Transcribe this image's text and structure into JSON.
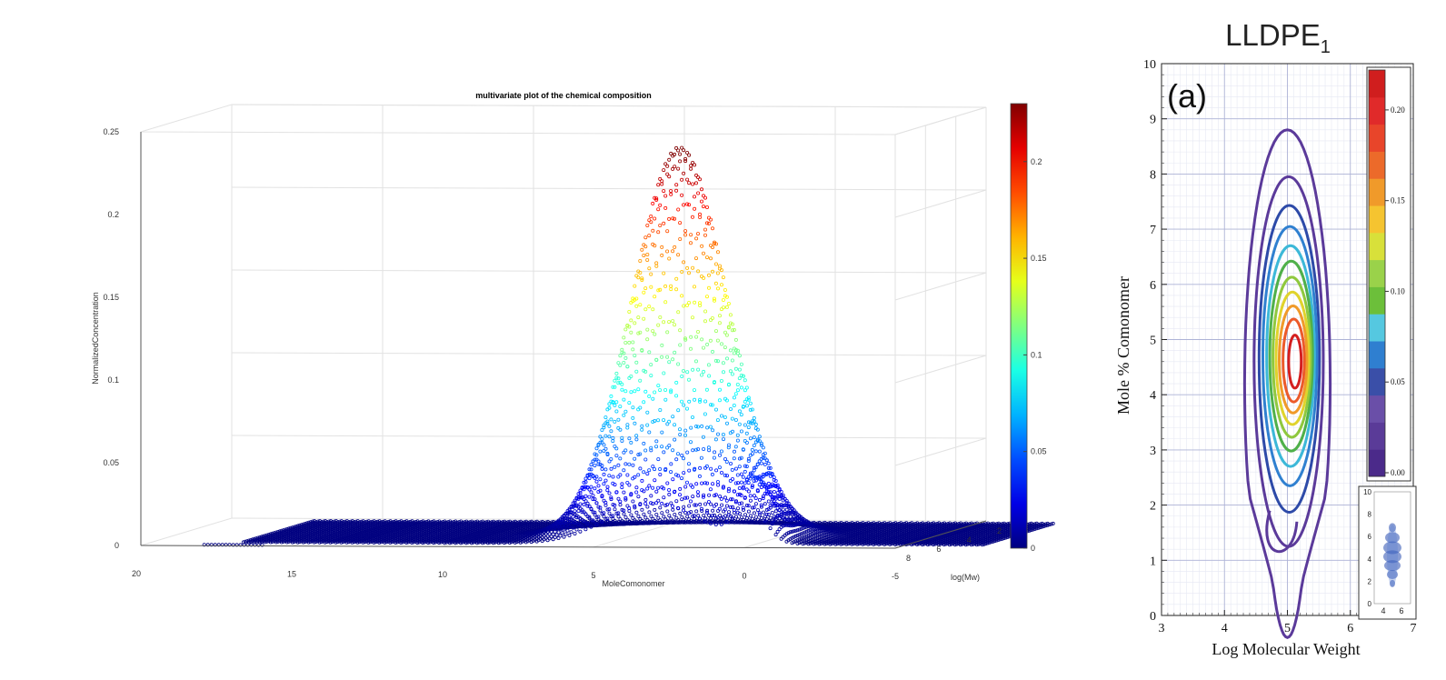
{
  "chart_data": [
    {
      "type": "scatter",
      "title": "multivariate plot of the chemical composition",
      "xlabel": "MoleComonomer",
      "ylabel": "log(Mw)",
      "zlabel": "NormalizedConcentration",
      "x_ticks": [
        "20",
        "15",
        "10",
        "5",
        "0",
        "-5"
      ],
      "y_ticks": [
        "8",
        "6",
        "4",
        "2"
      ],
      "z_ticks": [
        "0",
        "0.05",
        "0.1",
        "0.15",
        "0.2",
        "0.25"
      ],
      "colorbar_ticks": [
        "0",
        "0.05",
        "0.1",
        "0.15",
        "0.2"
      ],
      "colormap": "jet",
      "clim": [
        0,
        0.23
      ],
      "xlim": [
        20,
        -5
      ],
      "ylim": [
        8,
        2
      ],
      "zlim": [
        0,
        0.25
      ],
      "grid": true,
      "peak": {
        "x": 3.5,
        "z": 0.235
      },
      "secondary_peak": {
        "x": 0.2,
        "z": 0.06
      }
    },
    {
      "type": "contour",
      "title": "LLDPE",
      "title_subscript": "1",
      "panel_label": "(a)",
      "xlabel": "Log Molecular Weight",
      "ylabel": "Mole % Comonomer",
      "x_ticks": [
        "3",
        "4",
        "5",
        "6",
        "7"
      ],
      "y_ticks": [
        "0",
        "1",
        "2",
        "3",
        "4",
        "5",
        "6",
        "7",
        "8",
        "9",
        "10"
      ],
      "xlim": [
        3,
        7
      ],
      "ylim": [
        0,
        10
      ],
      "grid": true,
      "colorbar_ticks": [
        "0.00",
        "0.05",
        "0.10",
        "0.15",
        "0.20"
      ],
      "colorbar_colors": [
        "#4b2a8a",
        "#5a3b98",
        "#6a4fa8",
        "#3a4fa8",
        "#2f7fd0",
        "#55c8e0",
        "#6cbf3a",
        "#9ad24a",
        "#d8e03a",
        "#f5c430",
        "#f09a2a",
        "#ec6a2a",
        "#e8452a",
        "#e02a2a",
        "#d01e1e"
      ],
      "levels": [
        {
          "color": "#5b3a9a",
          "cx": 5.0,
          "cy": 4.2,
          "rx": 0.68,
          "ry": 4.6
        },
        {
          "color": "#5b3a9a",
          "cx": 5.02,
          "cy": 4.6,
          "rx": 0.55,
          "ry": 3.35
        },
        {
          "color": "#2d4aa8",
          "cx": 5.03,
          "cy": 4.65,
          "rx": 0.48,
          "ry": 2.78
        },
        {
          "color": "#2f80d0",
          "cx": 5.04,
          "cy": 4.7,
          "rx": 0.43,
          "ry": 2.35
        },
        {
          "color": "#3cb8d8",
          "cx": 5.05,
          "cy": 4.7,
          "rx": 0.38,
          "ry": 2.0
        },
        {
          "color": "#4fb04a",
          "cx": 5.06,
          "cy": 4.7,
          "rx": 0.34,
          "ry": 1.72
        },
        {
          "color": "#8fc83e",
          "cx": 5.07,
          "cy": 4.68,
          "rx": 0.3,
          "ry": 1.45
        },
        {
          "color": "#e0d32c",
          "cx": 5.08,
          "cy": 4.66,
          "rx": 0.26,
          "ry": 1.2
        },
        {
          "color": "#f09a2a",
          "cx": 5.09,
          "cy": 4.64,
          "rx": 0.22,
          "ry": 0.97
        },
        {
          "color": "#ec5a2a",
          "cx": 5.1,
          "cy": 4.62,
          "rx": 0.17,
          "ry": 0.75
        },
        {
          "color": "#d41f1f",
          "cx": 5.12,
          "cy": 4.6,
          "rx": 0.1,
          "ry": 0.48
        }
      ],
      "inset": {
        "x_ticks": [
          "4",
          "6"
        ],
        "y_ticks": [
          "0",
          "2",
          "4",
          "6",
          "8",
          "10"
        ]
      }
    }
  ]
}
